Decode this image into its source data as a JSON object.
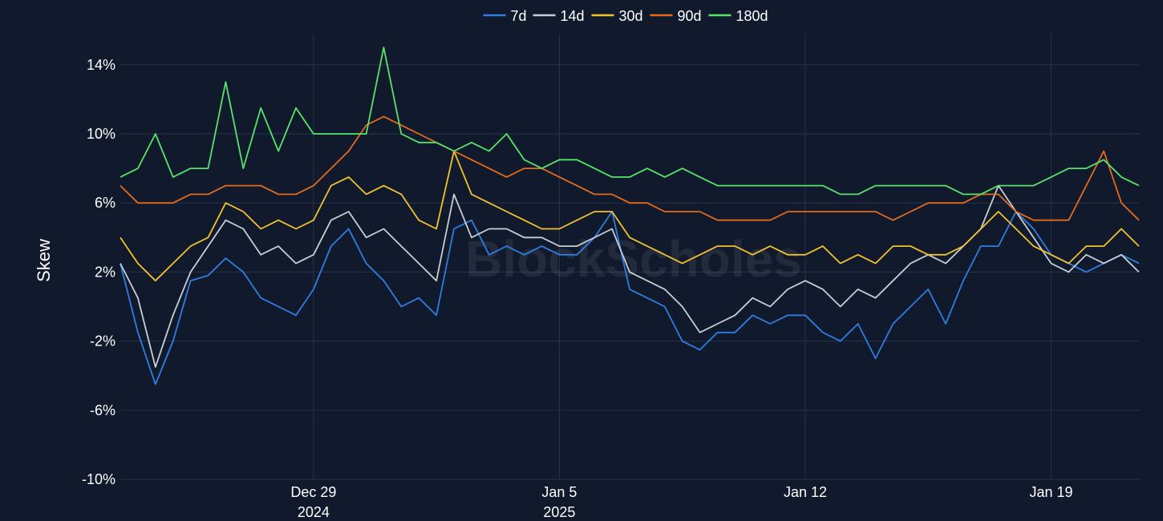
{
  "chart_data": {
    "type": "line",
    "ylabel": "Skew",
    "watermark": "BlockScholes",
    "y_unit": "%",
    "ylim": [
      -10,
      15.8
    ],
    "y_ticks": [
      -10,
      -6,
      -2,
      2,
      6,
      10,
      14
    ],
    "y_tick_labels": [
      "-10%",
      "-6%",
      "-2%",
      "2%",
      "6%",
      "10%",
      "14%"
    ],
    "xlim": [
      "2024-12-23T12:00",
      "2025-01-21T12:00"
    ],
    "x_ticks": [
      {
        "date": "2024-12-29",
        "label": "Dec 29",
        "sublabel": "2024"
      },
      {
        "date": "2025-01-05",
        "label": "Jan 5",
        "sublabel": "2025"
      },
      {
        "date": "2025-01-12",
        "label": "Jan 12",
        "sublabel": ""
      },
      {
        "date": "2025-01-19",
        "label": "Jan 19",
        "sublabel": ""
      }
    ],
    "grid": true,
    "legend_position": "top-center",
    "series": [
      {
        "name": "7d",
        "color": "#2f7de1",
        "x": [
          "2024-12-23T12:00",
          "2024-12-24",
          "2024-12-24T12:00",
          "2024-12-25",
          "2024-12-25T12:00",
          "2024-12-26",
          "2024-12-26T12:00",
          "2024-12-27",
          "2024-12-27T12:00",
          "2024-12-28",
          "2024-12-28T12:00",
          "2024-12-29",
          "2024-12-29T12:00",
          "2024-12-30",
          "2024-12-30T12:00",
          "2024-12-31",
          "2024-12-31T12:00",
          "2025-01-01",
          "2025-01-01T12:00",
          "2025-01-02",
          "2025-01-02T12:00",
          "2025-01-03",
          "2025-01-03T12:00",
          "2025-01-04",
          "2025-01-04T12:00",
          "2025-01-05",
          "2025-01-05T12:00",
          "2025-01-06",
          "2025-01-06T12:00",
          "2025-01-07",
          "2025-01-07T12:00",
          "2025-01-08",
          "2025-01-08T12:00",
          "2025-01-09",
          "2025-01-09T12:00",
          "2025-01-10",
          "2025-01-10T12:00",
          "2025-01-11",
          "2025-01-11T12:00",
          "2025-01-12",
          "2025-01-12T12:00",
          "2025-01-13",
          "2025-01-13T12:00",
          "2025-01-14",
          "2025-01-14T12:00",
          "2025-01-15",
          "2025-01-15T12:00",
          "2025-01-16",
          "2025-01-16T12:00",
          "2025-01-17",
          "2025-01-17T12:00",
          "2025-01-18",
          "2025-01-18T12:00",
          "2025-01-19",
          "2025-01-19T12:00",
          "2025-01-20",
          "2025-01-20T12:00",
          "2025-01-21",
          "2025-01-21T12:00"
        ],
        "y": [
          2.5,
          -1.5,
          -4.5,
          -2.0,
          1.5,
          1.8,
          2.8,
          2.0,
          0.5,
          0.0,
          -0.5,
          1.0,
          3.5,
          4.5,
          2.5,
          1.5,
          0.0,
          0.5,
          -0.5,
          4.5,
          5.0,
          3.0,
          3.5,
          3.0,
          3.5,
          3.0,
          3.0,
          4.0,
          5.5,
          1.0,
          0.5,
          0.0,
          -2.0,
          -2.5,
          -1.5,
          -1.5,
          -0.5,
          -1.0,
          -0.5,
          -0.5,
          -1.5,
          -2.0,
          -1.0,
          -3.0,
          -1.0,
          0.0,
          1.0,
          -1.0,
          1.5,
          3.5,
          3.5,
          5.5,
          4.5,
          3.0,
          2.5,
          2.0,
          2.5,
          3.0,
          2.5
        ]
      },
      {
        "name": "14d",
        "color": "#c8cdd3",
        "x": [
          "2024-12-23T12:00",
          "2024-12-24",
          "2024-12-24T12:00",
          "2024-12-25",
          "2024-12-25T12:00",
          "2024-12-26",
          "2024-12-26T12:00",
          "2024-12-27",
          "2024-12-27T12:00",
          "2024-12-28",
          "2024-12-28T12:00",
          "2024-12-29",
          "2024-12-29T12:00",
          "2024-12-30",
          "2024-12-30T12:00",
          "2024-12-31",
          "2024-12-31T12:00",
          "2025-01-01",
          "2025-01-01T12:00",
          "2025-01-02",
          "2025-01-02T12:00",
          "2025-01-03",
          "2025-01-03T12:00",
          "2025-01-04",
          "2025-01-04T12:00",
          "2025-01-05",
          "2025-01-05T12:00",
          "2025-01-06",
          "2025-01-06T12:00",
          "2025-01-07",
          "2025-01-07T12:00",
          "2025-01-08",
          "2025-01-08T12:00",
          "2025-01-09",
          "2025-01-09T12:00",
          "2025-01-10",
          "2025-01-10T12:00",
          "2025-01-11",
          "2025-01-11T12:00",
          "2025-01-12",
          "2025-01-12T12:00",
          "2025-01-13",
          "2025-01-13T12:00",
          "2025-01-14",
          "2025-01-14T12:00",
          "2025-01-15",
          "2025-01-15T12:00",
          "2025-01-16",
          "2025-01-16T12:00",
          "2025-01-17",
          "2025-01-17T12:00",
          "2025-01-18",
          "2025-01-18T12:00",
          "2025-01-19",
          "2025-01-19T12:00",
          "2025-01-20",
          "2025-01-20T12:00",
          "2025-01-21",
          "2025-01-21T12:00"
        ],
        "y": [
          2.5,
          0.5,
          -3.5,
          -0.5,
          2.0,
          3.5,
          5.0,
          4.5,
          3.0,
          3.5,
          2.5,
          3.0,
          5.0,
          5.5,
          4.0,
          4.5,
          3.5,
          2.5,
          1.5,
          6.5,
          4.0,
          4.5,
          4.5,
          4.0,
          4.0,
          3.5,
          3.5,
          4.0,
          4.5,
          2.0,
          1.5,
          1.0,
          0.0,
          -1.5,
          -1.0,
          -0.5,
          0.5,
          0.0,
          1.0,
          1.5,
          1.0,
          0.0,
          1.0,
          0.5,
          1.5,
          2.5,
          3.0,
          2.5,
          3.5,
          4.5,
          7.0,
          5.5,
          4.0,
          2.5,
          2.0,
          3.0,
          2.5,
          3.0,
          2.0
        ]
      },
      {
        "name": "30d",
        "color": "#f2c12e",
        "x": [
          "2024-12-23T12:00",
          "2024-12-24",
          "2024-12-24T12:00",
          "2024-12-25",
          "2024-12-25T12:00",
          "2024-12-26",
          "2024-12-26T12:00",
          "2024-12-27",
          "2024-12-27T12:00",
          "2024-12-28",
          "2024-12-28T12:00",
          "2024-12-29",
          "2024-12-29T12:00",
          "2024-12-30",
          "2024-12-30T12:00",
          "2024-12-31",
          "2024-12-31T12:00",
          "2025-01-01",
          "2025-01-01T12:00",
          "2025-01-02",
          "2025-01-02T12:00",
          "2025-01-03",
          "2025-01-03T12:00",
          "2025-01-04",
          "2025-01-04T12:00",
          "2025-01-05",
          "2025-01-05T12:00",
          "2025-01-06",
          "2025-01-06T12:00",
          "2025-01-07",
          "2025-01-07T12:00",
          "2025-01-08",
          "2025-01-08T12:00",
          "2025-01-09",
          "2025-01-09T12:00",
          "2025-01-10",
          "2025-01-10T12:00",
          "2025-01-11",
          "2025-01-11T12:00",
          "2025-01-12",
          "2025-01-12T12:00",
          "2025-01-13",
          "2025-01-13T12:00",
          "2025-01-14",
          "2025-01-14T12:00",
          "2025-01-15",
          "2025-01-15T12:00",
          "2025-01-16",
          "2025-01-16T12:00",
          "2025-01-17",
          "2025-01-17T12:00",
          "2025-01-18",
          "2025-01-18T12:00",
          "2025-01-19",
          "2025-01-19T12:00",
          "2025-01-20",
          "2025-01-20T12:00",
          "2025-01-21",
          "2025-01-21T12:00"
        ],
        "y": [
          4.0,
          2.5,
          1.5,
          2.5,
          3.5,
          4.0,
          6.0,
          5.5,
          4.5,
          5.0,
          4.5,
          5.0,
          7.0,
          7.5,
          6.5,
          7.0,
          6.5,
          5.0,
          4.5,
          9.0,
          6.5,
          6.0,
          5.5,
          5.0,
          4.5,
          4.5,
          5.0,
          5.5,
          5.5,
          4.0,
          3.5,
          3.0,
          2.5,
          3.0,
          3.5,
          3.5,
          3.0,
          3.5,
          3.0,
          3.0,
          3.5,
          2.5,
          3.0,
          2.5,
          3.5,
          3.5,
          3.0,
          3.0,
          3.5,
          4.5,
          5.5,
          4.5,
          3.5,
          3.0,
          2.5,
          3.5,
          3.5,
          4.5,
          3.5
        ]
      },
      {
        "name": "90d",
        "color": "#e46a1c",
        "x": [
          "2024-12-23T12:00",
          "2024-12-24",
          "2024-12-24T12:00",
          "2024-12-25",
          "2024-12-25T12:00",
          "2024-12-26",
          "2024-12-26T12:00",
          "2024-12-27",
          "2024-12-27T12:00",
          "2024-12-28",
          "2024-12-28T12:00",
          "2024-12-29",
          "2024-12-29T12:00",
          "2024-12-30",
          "2024-12-30T12:00",
          "2024-12-31",
          "2024-12-31T12:00",
          "2025-01-01",
          "2025-01-01T12:00",
          "2025-01-02",
          "2025-01-02T12:00",
          "2025-01-03",
          "2025-01-03T12:00",
          "2025-01-04",
          "2025-01-04T12:00",
          "2025-01-05",
          "2025-01-05T12:00",
          "2025-01-06",
          "2025-01-06T12:00",
          "2025-01-07",
          "2025-01-07T12:00",
          "2025-01-08",
          "2025-01-08T12:00",
          "2025-01-09",
          "2025-01-09T12:00",
          "2025-01-10",
          "2025-01-10T12:00",
          "2025-01-11",
          "2025-01-11T12:00",
          "2025-01-12",
          "2025-01-12T12:00",
          "2025-01-13",
          "2025-01-13T12:00",
          "2025-01-14",
          "2025-01-14T12:00",
          "2025-01-15",
          "2025-01-15T12:00",
          "2025-01-16",
          "2025-01-16T12:00",
          "2025-01-17",
          "2025-01-17T12:00",
          "2025-01-18",
          "2025-01-18T12:00",
          "2025-01-19",
          "2025-01-19T12:00",
          "2025-01-20",
          "2025-01-20T12:00",
          "2025-01-21",
          "2025-01-21T12:00"
        ],
        "y": [
          7.0,
          6.0,
          6.0,
          6.0,
          6.5,
          6.5,
          7.0,
          7.0,
          7.0,
          6.5,
          6.5,
          7.0,
          8.0,
          9.0,
          10.5,
          11.0,
          10.5,
          10.0,
          9.5,
          9.0,
          8.5,
          8.0,
          7.5,
          8.0,
          8.0,
          7.5,
          7.0,
          6.5,
          6.5,
          6.0,
          6.0,
          5.5,
          5.5,
          5.5,
          5.0,
          5.0,
          5.0,
          5.0,
          5.5,
          5.5,
          5.5,
          5.5,
          5.5,
          5.5,
          5.0,
          5.5,
          6.0,
          6.0,
          6.0,
          6.5,
          6.5,
          5.5,
          5.0,
          5.0,
          5.0,
          7.0,
          9.0,
          6.0,
          5.0
        ]
      },
      {
        "name": "180d",
        "color": "#57e36a",
        "x": [
          "2024-12-23T12:00",
          "2024-12-24",
          "2024-12-24T12:00",
          "2024-12-25",
          "2024-12-25T12:00",
          "2024-12-26",
          "2024-12-26T12:00",
          "2024-12-27",
          "2024-12-27T12:00",
          "2024-12-28",
          "2024-12-28T12:00",
          "2024-12-29",
          "2024-12-29T12:00",
          "2024-12-30",
          "2024-12-30T12:00",
          "2024-12-31",
          "2024-12-31T12:00",
          "2025-01-01",
          "2025-01-01T12:00",
          "2025-01-02",
          "2025-01-02T12:00",
          "2025-01-03",
          "2025-01-03T12:00",
          "2025-01-04",
          "2025-01-04T12:00",
          "2025-01-05",
          "2025-01-05T12:00",
          "2025-01-06",
          "2025-01-06T12:00",
          "2025-01-07",
          "2025-01-07T12:00",
          "2025-01-08",
          "2025-01-08T12:00",
          "2025-01-09",
          "2025-01-09T12:00",
          "2025-01-10",
          "2025-01-10T12:00",
          "2025-01-11",
          "2025-01-11T12:00",
          "2025-01-12",
          "2025-01-12T12:00",
          "2025-01-13",
          "2025-01-13T12:00",
          "2025-01-14",
          "2025-01-14T12:00",
          "2025-01-15",
          "2025-01-15T12:00",
          "2025-01-16",
          "2025-01-16T12:00",
          "2025-01-17",
          "2025-01-17T12:00",
          "2025-01-18",
          "2025-01-18T12:00",
          "2025-01-19",
          "2025-01-19T12:00",
          "2025-01-20",
          "2025-01-20T12:00",
          "2025-01-21",
          "2025-01-21T12:00"
        ],
        "y": [
          7.5,
          8.0,
          10.0,
          7.5,
          8.0,
          8.0,
          13.0,
          8.0,
          11.5,
          9.0,
          11.5,
          10.0,
          10.0,
          10.0,
          10.0,
          15.0,
          10.0,
          9.5,
          9.5,
          9.0,
          9.5,
          9.0,
          10.0,
          8.5,
          8.0,
          8.5,
          8.5,
          8.0,
          7.5,
          7.5,
          8.0,
          7.5,
          8.0,
          7.5,
          7.0,
          7.0,
          7.0,
          7.0,
          7.0,
          7.0,
          7.0,
          6.5,
          6.5,
          7.0,
          7.0,
          7.0,
          7.0,
          7.0,
          6.5,
          6.5,
          7.0,
          7.0,
          7.0,
          7.5,
          8.0,
          8.0,
          8.5,
          7.5,
          7.0
        ]
      }
    ]
  }
}
